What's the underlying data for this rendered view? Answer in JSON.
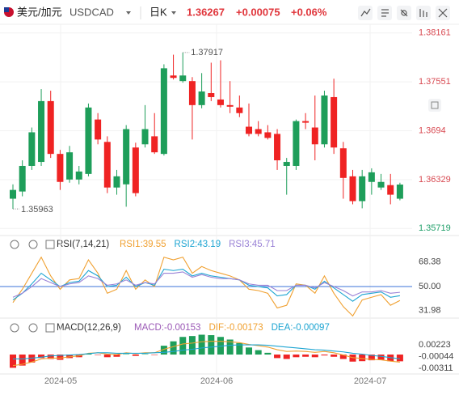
{
  "header": {
    "pair": "美元/加元",
    "symbol": "USDCAD",
    "period": "日K",
    "price": "1.36267",
    "change": "+0.00075",
    "change_pct": "+0.06%"
  },
  "x_labels": [
    "2024-05",
    "2024-06",
    "2024-07"
  ],
  "chart_data": [
    {
      "type": "candlestick",
      "up_color": "#1e9e5a",
      "down_color": "#ef2323",
      "ylim": [
        1.3564,
        1.3827
      ],
      "yticks": [
        1.38161,
        1.37551,
        1.3694,
        1.36329,
        1.35719
      ],
      "tick_colors": {
        "above": "#d84a52",
        "below": "#22a06b"
      },
      "grid": true,
      "open": [
        1.3609,
        1.3618,
        1.365,
        1.3655,
        1.3731,
        1.3665,
        1.3633,
        1.3633,
        1.364,
        1.3708,
        1.368,
        1.3623,
        1.3627,
        1.3673,
        1.3677,
        1.3687,
        1.3665,
        1.3763,
        1.3756,
        1.3756,
        1.3726,
        1.3741,
        1.3733,
        1.3726,
        1.3723,
        1.3699,
        1.3696,
        1.3692,
        1.369,
        1.365,
        1.365,
        1.3706,
        1.3698,
        1.3677,
        1.3736,
        1.3672,
        1.3637,
        1.3606,
        1.363,
        1.3623,
        1.3626,
        1.3609
      ],
      "close": [
        1.362,
        1.365,
        1.3692,
        1.3731,
        1.3665,
        1.363,
        1.3667,
        1.3643,
        1.3723,
        1.3683,
        1.3623,
        1.3637,
        1.3696,
        1.3616,
        1.3696,
        1.3667,
        1.3772,
        1.376,
        1.3763,
        1.3726,
        1.3743,
        1.3736,
        1.3726,
        1.3724,
        1.3716,
        1.369,
        1.369,
        1.3685,
        1.3657,
        1.3655,
        1.3706,
        1.3704,
        1.3677,
        1.3738,
        1.3673,
        1.3635,
        1.3606,
        1.3637,
        1.3642,
        1.363,
        1.3614,
        1.36267
      ],
      "high": [
        1.3627,
        1.3657,
        1.3698,
        1.3746,
        1.3744,
        1.367,
        1.3675,
        1.365,
        1.3728,
        1.3716,
        1.3687,
        1.3645,
        1.3701,
        1.3679,
        1.3726,
        1.3716,
        1.3777,
        1.3789,
        1.37917,
        1.3761,
        1.3766,
        1.3779,
        1.3782,
        1.3756,
        1.3738,
        1.3728,
        1.3706,
        1.3701,
        1.3696,
        1.366,
        1.3708,
        1.3716,
        1.3738,
        1.3744,
        1.3759,
        1.368,
        1.3645,
        1.3645,
        1.3647,
        1.364,
        1.364,
        1.3629
      ],
      "low": [
        1.35963,
        1.3612,
        1.3645,
        1.365,
        1.366,
        1.362,
        1.3629,
        1.3627,
        1.3637,
        1.3677,
        1.3616,
        1.3614,
        1.3599,
        1.3612,
        1.3673,
        1.3665,
        1.3663,
        1.3758,
        1.3754,
        1.3683,
        1.3722,
        1.3731,
        1.3723,
        1.3716,
        1.3711,
        1.3687,
        1.3687,
        1.3683,
        1.3645,
        1.3614,
        1.3645,
        1.3696,
        1.3657,
        1.3673,
        1.3665,
        1.3609,
        1.3602,
        1.3597,
        1.3614,
        1.362,
        1.3602,
        1.3607
      ]
    },
    {
      "type": "line",
      "title": "RSI(7,14,21)",
      "ylim": [
        27,
        87
      ],
      "yticks": [
        68.38,
        {
          "value": 50,
          "label": "50.00"
        },
        31.98
      ],
      "reference_line": {
        "value": 50,
        "color": "#3b73d9"
      },
      "series": [
        {
          "name": "RSI1:39.55",
          "color": "#f0a030",
          "values": [
            38,
            48,
            60,
            72,
            58,
            48,
            55,
            56,
            70,
            60,
            45,
            48,
            62,
            48,
            55,
            50,
            72,
            70,
            72,
            60,
            65,
            62,
            60,
            58,
            55,
            48,
            47,
            45,
            34,
            36,
            52,
            51,
            45,
            58,
            45,
            35,
            28,
            40,
            42,
            44,
            36,
            39.55
          ]
        },
        {
          "name": "RSI2:43.19",
          "color": "#1ea5d2",
          "values": [
            40,
            45,
            52,
            60,
            55,
            50,
            53,
            54,
            62,
            58,
            50,
            51,
            57,
            50,
            53,
            51,
            63,
            62,
            63,
            58,
            60,
            58,
            57,
            56,
            55,
            51,
            50,
            49,
            43,
            44,
            51,
            51,
            48,
            54,
            49,
            44,
            39,
            44,
            45,
            46,
            42,
            43.19
          ]
        },
        {
          "name": "RSI3:45.71",
          "color": "#9a82d6",
          "values": [
            42,
            45,
            50,
            56,
            53,
            50,
            52,
            53,
            58,
            56,
            51,
            52,
            55,
            51,
            53,
            52,
            60,
            60,
            61,
            57,
            59,
            57,
            56,
            56,
            55,
            52,
            51,
            51,
            47,
            47,
            51,
            51,
            49,
            53,
            50,
            47,
            43,
            46,
            46,
            47,
            45,
            45.71
          ]
        }
      ]
    },
    {
      "type": "macd",
      "title": "MACD(12,26,9)",
      "ylim": [
        -0.0044,
        0.0079
      ],
      "yticks": [
        0.00223,
        -0.00044,
        -0.00311
      ],
      "up_color": "#1e9e5a",
      "down_color": "#ef2323",
      "series": [
        {
          "name": "MACD:-0.00153",
          "color": "#9b59b6",
          "style": "bar",
          "values": [
            -0.003,
            -0.0025,
            -0.0018,
            -0.0008,
            -0.001,
            -0.0012,
            -0.0008,
            -0.0006,
            0.0002,
            -0.0001,
            -0.0006,
            -0.0005,
            0.0001,
            -0.0003,
            0.0001,
            -0.0001,
            0.002,
            0.003,
            0.004,
            0.0042,
            0.0045,
            0.0044,
            0.004,
            0.0034,
            0.0026,
            0.0016,
            0.001,
            0.0004,
            -0.0008,
            -0.001,
            -0.0006,
            -0.0005,
            -0.0006,
            -0.0002,
            -0.0005,
            -0.001,
            -0.0016,
            -0.0015,
            -0.0013,
            -0.0012,
            -0.0015,
            -0.00153
          ]
        },
        {
          "name": "DIF:-0.00173",
          "color": "#f0a030",
          "style": "line",
          "values": [
            -0.0025,
            -0.0022,
            -0.0017,
            -0.001,
            -0.0008,
            -0.0008,
            -0.0005,
            -0.0003,
            0.0003,
            0.0004,
            0.0001,
            0.0,
            0.0004,
            0.0002,
            0.0004,
            0.0004,
            0.0012,
            0.0018,
            0.0024,
            0.0026,
            0.0029,
            0.003,
            0.003,
            0.0029,
            0.0027,
            0.0023,
            0.002,
            0.0017,
            0.0011,
            0.0007,
            0.0008,
            0.0007,
            0.0005,
            0.0007,
            0.0004,
            -0.0001,
            -0.0007,
            -0.0009,
            -0.0011,
            -0.0012,
            -0.0015,
            -0.00173
          ]
        },
        {
          "name": "DEA:-0.00097",
          "color": "#1ea5d2",
          "style": "line",
          "values": [
            -0.001,
            -0.001,
            -0.0008,
            -0.0006,
            -0.0003,
            -0.0002,
            -0.0001,
            0.0,
            0.0002,
            0.0004,
            0.0004,
            0.0003,
            0.0003,
            0.0003,
            0.0003,
            0.0004,
            0.0005,
            0.0007,
            0.001,
            0.0012,
            0.0015,
            0.0017,
            0.0019,
            0.0021,
            0.0022,
            0.0022,
            0.0022,
            0.0021,
            0.0019,
            0.0017,
            0.0015,
            0.0013,
            0.0011,
            0.001,
            0.0008,
            0.0006,
            0.0003,
            0.0001,
            -0.0002,
            -0.0004,
            -0.0007,
            -0.00097
          ]
        }
      ]
    }
  ]
}
